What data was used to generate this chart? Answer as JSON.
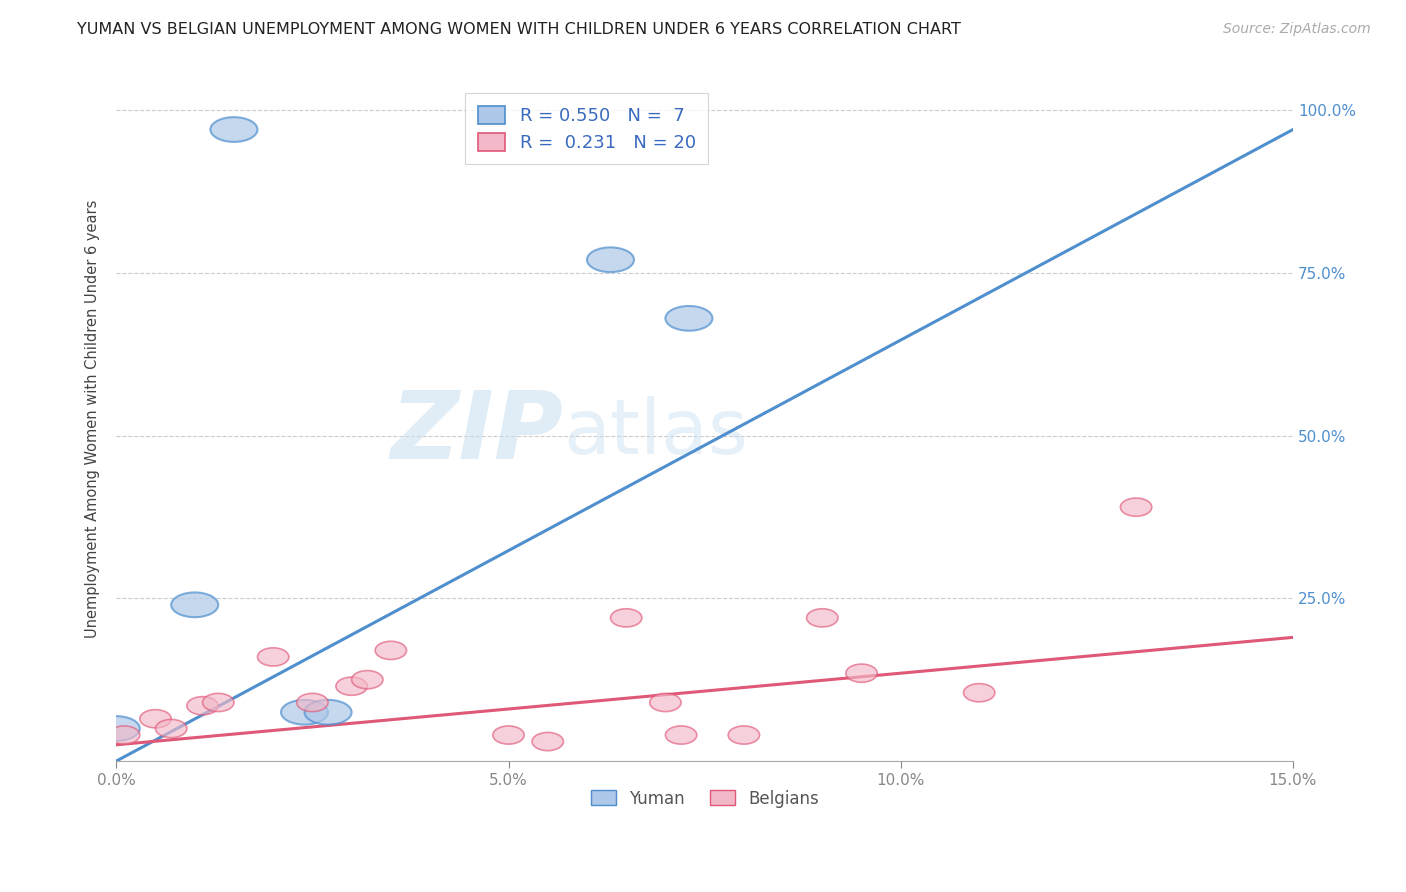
{
  "title": "YUMAN VS BELGIAN UNEMPLOYMENT AMONG WOMEN WITH CHILDREN UNDER 6 YEARS CORRELATION CHART",
  "source": "Source: ZipAtlas.com",
  "ylabel": "Unemployment Among Women with Children Under 6 years",
  "xlim": [
    0,
    0.15
  ],
  "ylim": [
    0,
    1.05
  ],
  "yuman_x": [
    0.015,
    0.01,
    0.024,
    0.027,
    0.063,
    0.073,
    0.0
  ],
  "yuman_y": [
    0.97,
    0.24,
    0.075,
    0.075,
    0.77,
    0.68,
    0.05
  ],
  "belgians_x": [
    0.001,
    0.005,
    0.007,
    0.011,
    0.013,
    0.02,
    0.025,
    0.03,
    0.032,
    0.035,
    0.05,
    0.055,
    0.065,
    0.07,
    0.072,
    0.08,
    0.09,
    0.095,
    0.11,
    0.13
  ],
  "belgians_y": [
    0.04,
    0.065,
    0.05,
    0.085,
    0.09,
    0.16,
    0.09,
    0.115,
    0.125,
    0.17,
    0.04,
    0.03,
    0.22,
    0.09,
    0.04,
    0.04,
    0.22,
    0.135,
    0.105,
    0.39
  ],
  "yuman_color": "#adc8e8",
  "belgians_color": "#f2b8c8",
  "yuman_line_color": "#4f8fce",
  "belgians_line_color": "#e05878",
  "blue_line_x0": 0.0,
  "blue_line_y0": 0.0,
  "blue_line_x1": 0.15,
  "blue_line_y1": 0.97,
  "pink_line_x0": 0.0,
  "pink_line_y0": 0.025,
  "pink_line_x1": 0.15,
  "pink_line_y1": 0.19,
  "legend_R_yuman": "0.550",
  "legend_N_yuman": "7",
  "legend_R_belgians": "0.231",
  "legend_N_belgians": "20",
  "watermark_zip": "ZIP",
  "watermark_atlas": "atlas",
  "background_color": "#ffffff",
  "grid_color": "#cccccc",
  "right_axis_color": "#4f8fce",
  "title_fontsize": 11.5,
  "source_fontsize": 10,
  "tick_fontsize": 11,
  "legend_fontsize": 13
}
